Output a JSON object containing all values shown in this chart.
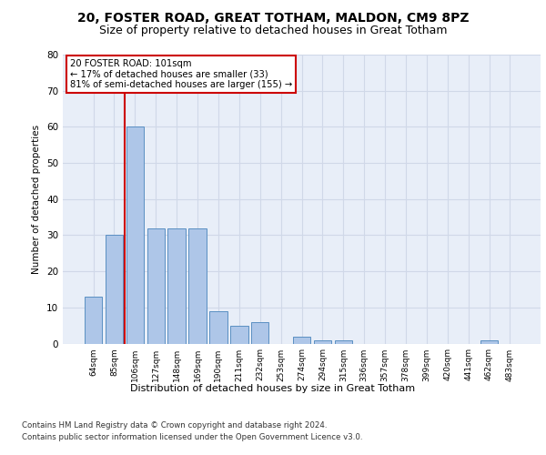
{
  "title_line1": "20, FOSTER ROAD, GREAT TOTHAM, MALDON, CM9 8PZ",
  "title_line2": "Size of property relative to detached houses in Great Totham",
  "xlabel": "Distribution of detached houses by size in Great Totham",
  "ylabel": "Number of detached properties",
  "categories": [
    "64sqm",
    "85sqm",
    "106sqm",
    "127sqm",
    "148sqm",
    "169sqm",
    "190sqm",
    "211sqm",
    "232sqm",
    "253sqm",
    "274sqm",
    "294sqm",
    "315sqm",
    "336sqm",
    "357sqm",
    "378sqm",
    "399sqm",
    "420sqm",
    "441sqm",
    "462sqm",
    "483sqm"
  ],
  "values": [
    13,
    30,
    60,
    32,
    32,
    32,
    9,
    5,
    6,
    0,
    2,
    1,
    1,
    0,
    0,
    0,
    0,
    0,
    0,
    1,
    0
  ],
  "bar_color": "#aec6e8",
  "bar_edge_color": "#5a8fc2",
  "red_line_x": 1.5,
  "annotation_text": "20 FOSTER ROAD: 101sqm\n← 17% of detached houses are smaller (33)\n81% of semi-detached houses are larger (155) →",
  "annotation_box_color": "#ffffff",
  "annotation_box_edge": "#cc0000",
  "vline_color": "#cc0000",
  "ylim": [
    0,
    80
  ],
  "yticks": [
    0,
    10,
    20,
    30,
    40,
    50,
    60,
    70,
    80
  ],
  "grid_color": "#d0d8e8",
  "bg_color": "#e8eef8",
  "footer_line1": "Contains HM Land Registry data © Crown copyright and database right 2024.",
  "footer_line2": "Contains public sector information licensed under the Open Government Licence v3.0.",
  "title_fontsize": 10,
  "subtitle_fontsize": 9,
  "bar_width": 0.85
}
